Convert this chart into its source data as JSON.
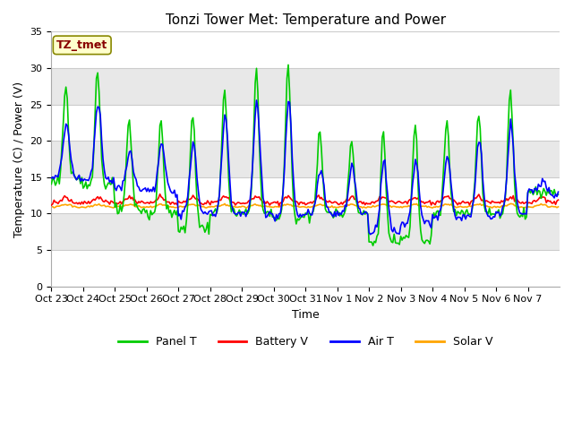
{
  "title": "Tonzi Tower Met: Temperature and Power",
  "xlabel": "Time",
  "ylabel": "Temperature (C) / Power (V)",
  "ylim": [
    0,
    35
  ],
  "yticks": [
    0,
    5,
    10,
    15,
    20,
    25,
    30,
    35
  ],
  "x_labels": [
    "Oct 23",
    "Oct 24",
    "Oct 25",
    "Oct 26",
    "Oct 27",
    "Oct 28",
    "Oct 29",
    "Oct 30",
    "Oct 31",
    "Nov 1",
    "Nov 2",
    "Nov 3",
    "Nov 4",
    "Nov 5",
    "Nov 6",
    "Nov 7"
  ],
  "outer_bg": "#ffffff",
  "plot_bg_light": "#ffffff",
  "plot_bg_dark": "#e8e8e8",
  "annotation_text": "TZ_tmet",
  "annotation_bg": "#ffffcc",
  "annotation_fg": "#880000",
  "annotation_border": "#888800",
  "legend_entries": [
    "Panel T",
    "Battery V",
    "Air T",
    "Solar V"
  ],
  "panel_t_color": "#00cc00",
  "battery_v_color": "#ff0000",
  "air_t_color": "#0000ff",
  "solar_v_color": "#ffa500",
  "line_width": 1.2,
  "title_fontsize": 11,
  "tick_fontsize": 8,
  "label_fontsize": 9
}
